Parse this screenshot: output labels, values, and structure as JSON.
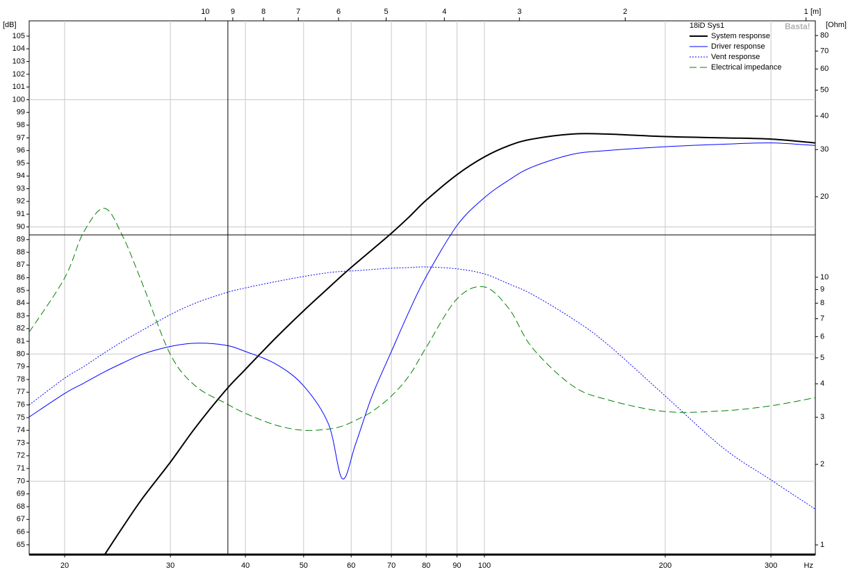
{
  "chart_data": {
    "type": "line",
    "legend_title": "18iD Sys1",
    "watermark": "Basta!",
    "xlabel": "Hz",
    "ylabel": "[dB]",
    "y2label": "[Ohm]",
    "x2label": "[m]",
    "xscale": "log",
    "y2scale": "log",
    "x2scale": "log",
    "xlim": [
      17.46,
      355.6
    ],
    "ylim": [
      64.23,
      106.2
    ],
    "y2lim": [
      0.92,
      90.8
    ],
    "x2lim": [
      19.64,
      0.965
    ],
    "xticks": [
      20,
      30,
      40,
      50,
      60,
      70,
      80,
      90,
      100,
      200,
      300
    ],
    "yticks": [
      65,
      66,
      67,
      68,
      69,
      70,
      71,
      72,
      73,
      74,
      75,
      76,
      77,
      78,
      79,
      80,
      81,
      82,
      83,
      84,
      85,
      86,
      87,
      88,
      89,
      90,
      91,
      92,
      93,
      94,
      95,
      96,
      97,
      98,
      99,
      100,
      101,
      102,
      103,
      104,
      105
    ],
    "y2ticks": [
      1,
      2,
      3,
      4,
      5,
      6,
      7,
      8,
      9,
      10,
      20,
      30,
      40,
      50,
      60,
      70,
      80
    ],
    "x2ticks": [
      10,
      9,
      8,
      7,
      6,
      5,
      4,
      3,
      2,
      1
    ],
    "ygrid": [
      70,
      80,
      90,
      100
    ],
    "grid": true,
    "legend": "upper right",
    "cursor": {
      "x": 37.4,
      "y": 89.37
    },
    "x": [
      17.46,
      20,
      21.5,
      23.3,
      25,
      27,
      30,
      33,
      37,
      40,
      45,
      50,
      55,
      58,
      61,
      65,
      70,
      75,
      80,
      90,
      100,
      110,
      120,
      140,
      160,
      200,
      250,
      300,
      355.6
    ],
    "series": [
      {
        "name": "System response",
        "color": "#000000",
        "width": 2,
        "dash": "solid",
        "values": [
          null,
          null,
          null,
          64.2,
          66.4,
          68.7,
          71.5,
          74.2,
          77.1,
          78.8,
          81.3,
          83.4,
          85.2,
          86.2,
          87.1,
          88.2,
          89.5,
          90.8,
          92.1,
          94.1,
          95.5,
          96.4,
          96.9,
          97.3,
          97.3,
          97.1,
          97.0,
          96.9,
          96.6
        ]
      },
      {
        "name": "Driver response",
        "color": "#0000ff",
        "width": 1,
        "dash": "solid",
        "values": [
          75.05,
          76.9,
          77.7,
          78.6,
          79.3,
          80.0,
          80.6,
          80.85,
          80.7,
          80.2,
          79.2,
          77.5,
          74.5,
          70.2,
          72.9,
          76.7,
          80.2,
          83.4,
          86.1,
          90.1,
          92.3,
          93.7,
          94.7,
          95.7,
          96.0,
          96.3,
          96.5,
          96.6,
          96.4
        ]
      },
      {
        "name": "Vent response",
        "color": "#0000ff",
        "width": 1,
        "dash": "dotted",
        "values": [
          76.0,
          78.1,
          79.0,
          80.1,
          81.0,
          81.9,
          83.1,
          84.0,
          84.8,
          85.2,
          85.7,
          86.1,
          86.4,
          86.5,
          86.55,
          86.65,
          86.75,
          86.8,
          86.85,
          86.7,
          86.3,
          85.5,
          84.7,
          82.8,
          80.8,
          76.7,
          72.6,
          70.1,
          67.8
        ]
      },
      {
        "name": "Electrical impedance",
        "color": "#008000",
        "width": 1,
        "dash": "dashed",
        "axis": "y2",
        "values": [
          6.24,
          9.94,
          14.7,
          18.1,
          14.2,
          9.36,
          5.15,
          3.93,
          3.39,
          3.1,
          2.8,
          2.68,
          2.71,
          2.78,
          2.92,
          3.15,
          3.6,
          4.3,
          5.47,
          8.3,
          9.2,
          7.6,
          5.47,
          3.94,
          3.49,
          3.15,
          3.17,
          3.31,
          3.55
        ]
      }
    ]
  }
}
